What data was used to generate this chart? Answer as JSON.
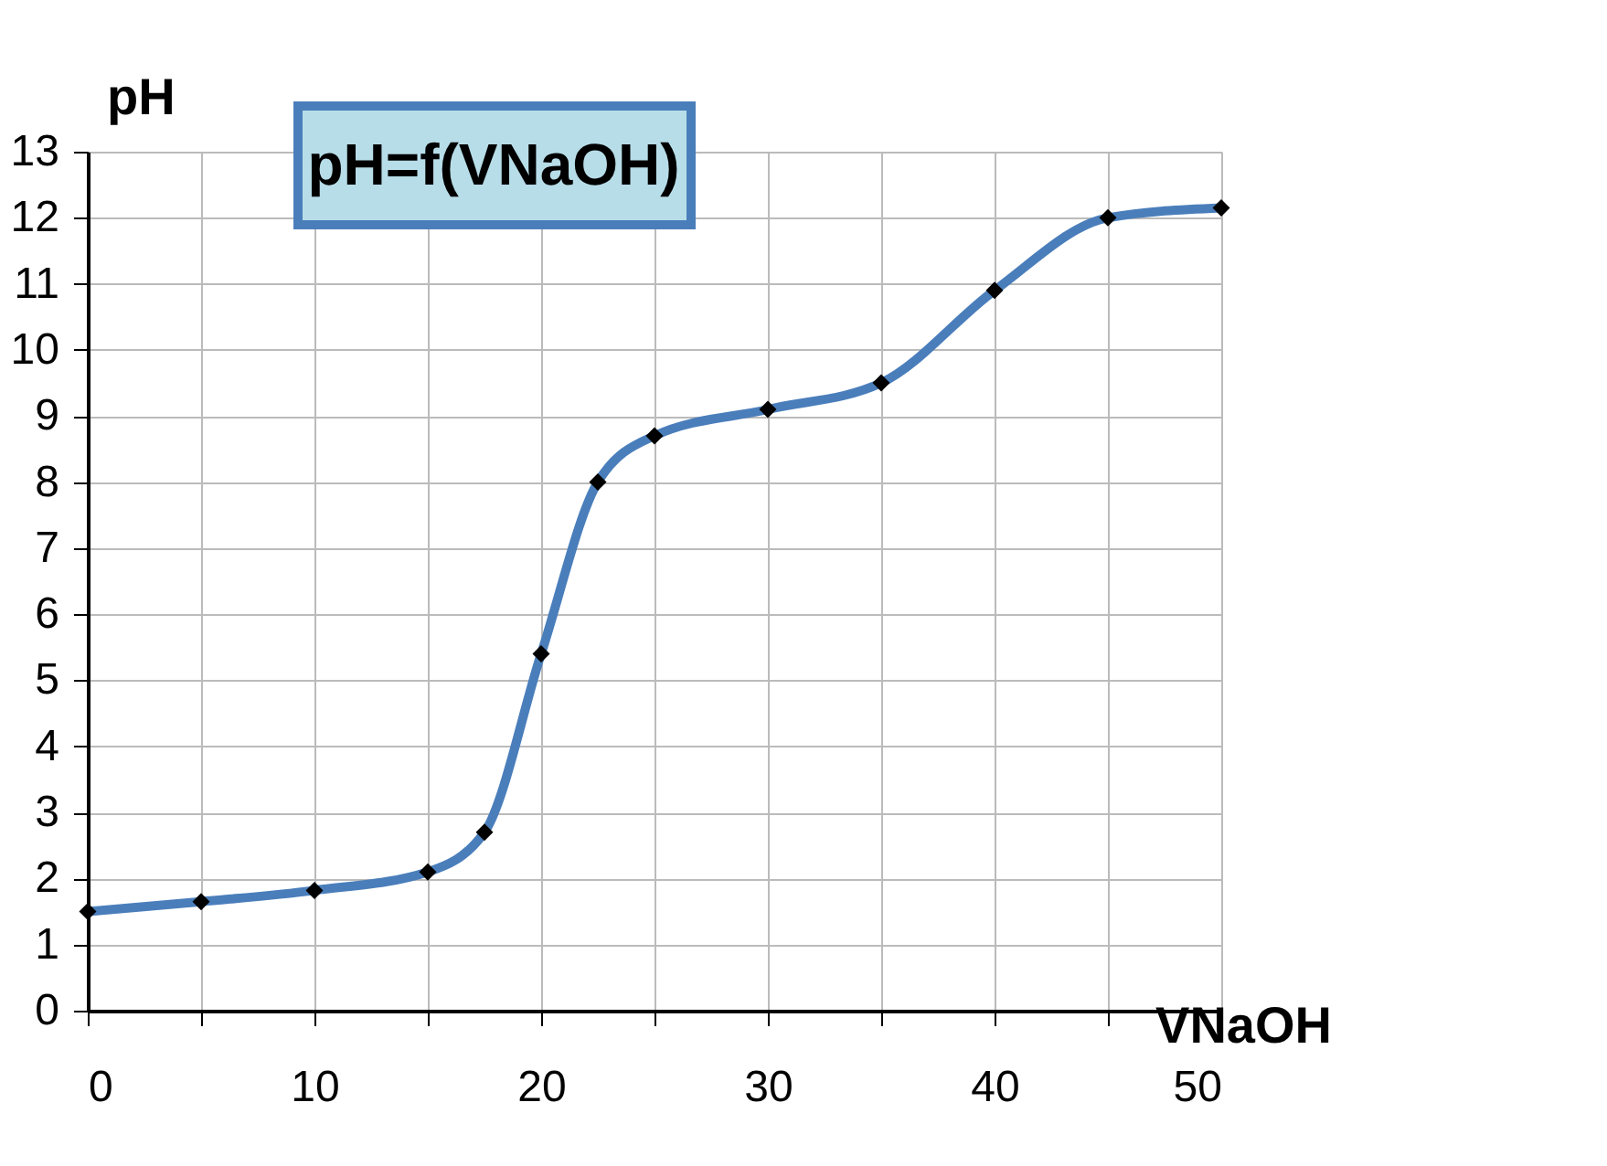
{
  "chart_data": {
    "type": "line",
    "title": "pH=f(VNaOH)",
    "xlabel": "VNaOH",
    "ylabel": "pH",
    "x": [
      0,
      5,
      10,
      15,
      17.5,
      20,
      22.5,
      25,
      30,
      35,
      40,
      45,
      50
    ],
    "series": [
      {
        "color": "#4a7ebb",
        "values": [
          1.5,
          1.65,
          1.82,
          2.1,
          2.7,
          5.4,
          8.0,
          8.7,
          9.1,
          9.5,
          10.9,
          12.0,
          12.15
        ]
      }
    ],
    "xlim": [
      0,
      50
    ],
    "ylim": [
      0,
      13
    ],
    "xticks": [
      0,
      {
        "value": 5,
        "label": null
      },
      10,
      {
        "value": 15,
        "label": null
      },
      20,
      {
        "value": 25,
        "label": null
      },
      30,
      {
        "value": 35,
        "label": null
      },
      40,
      {
        "value": 45,
        "label": null
      },
      50
    ],
    "yticks": [
      0,
      1,
      2,
      3,
      4,
      5,
      6,
      7,
      8,
      9,
      10,
      11,
      12,
      13
    ],
    "grid": true,
    "marker": "diamond",
    "line_style": "solid"
  }
}
